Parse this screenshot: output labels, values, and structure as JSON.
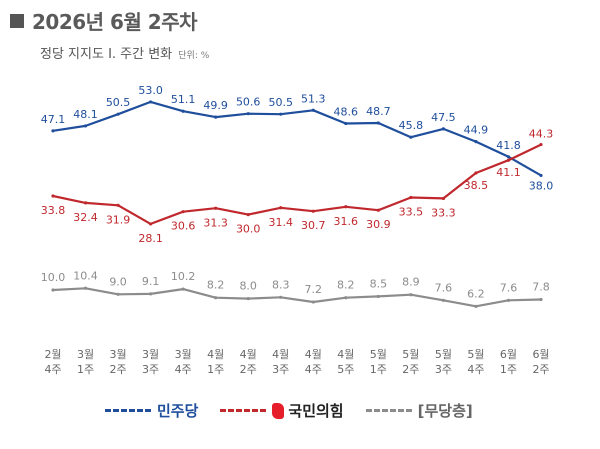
{
  "title": "2026년 6월 2주차",
  "subtitle": "정당 지지도 Ⅰ. 주간 변화",
  "unit": "단위: %",
  "chart_data": {
    "type": "line",
    "categories": [
      [
        "2월",
        "4주"
      ],
      [
        "3월",
        "1주"
      ],
      [
        "3월",
        "2주"
      ],
      [
        "3월",
        "3주"
      ],
      [
        "3월",
        "4주"
      ],
      [
        "4월",
        "1주"
      ],
      [
        "4월",
        "2주"
      ],
      [
        "4월",
        "3주"
      ],
      [
        "4월",
        "4주"
      ],
      [
        "4월",
        "5주"
      ],
      [
        "5월",
        "1주"
      ],
      [
        "5월",
        "2주"
      ],
      [
        "5월",
        "3주"
      ],
      [
        "5월",
        "4주"
      ],
      [
        "6월",
        "1주"
      ],
      [
        "6월",
        "2주"
      ]
    ],
    "series": [
      {
        "name": "민주당",
        "color": "#1f4e9c",
        "values": [
          47.1,
          48.1,
          50.5,
          53.0,
          51.1,
          49.9,
          50.6,
          50.5,
          51.3,
          48.6,
          48.7,
          45.8,
          47.5,
          44.9,
          41.8,
          38.0
        ]
      },
      {
        "name": "국민의힘",
        "color": "#c0282d",
        "values": [
          33.8,
          32.4,
          31.9,
          28.1,
          30.6,
          31.3,
          30.0,
          31.4,
          30.7,
          31.6,
          30.9,
          33.5,
          33.3,
          38.5,
          41.1,
          44.3
        ]
      },
      {
        "name": "[무당층]",
        "color": "#8c8c8c",
        "values": [
          10.0,
          10.4,
          9.0,
          9.1,
          10.2,
          8.2,
          8.0,
          8.3,
          7.2,
          8.2,
          8.5,
          8.9,
          7.6,
          6.2,
          7.6,
          7.8
        ]
      }
    ],
    "grid": false,
    "legend": "bottom"
  }
}
